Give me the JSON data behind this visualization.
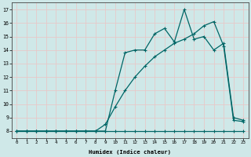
{
  "xlabel": "Humidex (Indice chaleur)",
  "bg_color": "#cfe8e8",
  "grid_color": "#e8c8c8",
  "line_color": "#006666",
  "x_values": [
    0,
    1,
    2,
    3,
    4,
    5,
    6,
    7,
    8,
    9,
    10,
    11,
    12,
    13,
    14,
    15,
    16,
    17,
    18,
    19,
    20,
    21,
    22,
    23
  ],
  "line1": [
    8,
    8,
    8,
    8,
    8,
    8,
    8,
    8,
    8,
    8,
    8,
    8,
    8,
    8,
    8,
    8,
    8,
    8,
    8,
    8,
    8,
    8,
    8,
    8
  ],
  "line2": [
    8,
    8,
    8,
    8,
    8,
    8,
    8,
    8,
    8,
    8,
    11,
    13.8,
    14,
    14,
    15.2,
    15.6,
    14.6,
    17,
    14.8,
    15,
    14,
    14.5,
    9.0,
    8.8
  ],
  "line3": [
    8,
    8,
    8,
    8,
    8,
    8,
    8,
    8,
    8,
    8.5,
    9.8,
    11,
    12,
    12.8,
    13.5,
    14.0,
    14.5,
    14.8,
    15.2,
    15.8,
    16.1,
    14.3,
    8.8,
    8.7
  ],
  "ylim": [
    7.5,
    17.5
  ],
  "xlim": [
    -0.5,
    23.5
  ],
  "yticks": [
    8,
    9,
    10,
    11,
    12,
    13,
    14,
    15,
    16,
    17
  ],
  "xticks": [
    0,
    1,
    2,
    3,
    4,
    5,
    6,
    7,
    8,
    9,
    10,
    11,
    12,
    13,
    14,
    15,
    16,
    17,
    18,
    19,
    20,
    21,
    22,
    23
  ],
  "figsize": [
    3.2,
    2.0
  ],
  "dpi": 100
}
